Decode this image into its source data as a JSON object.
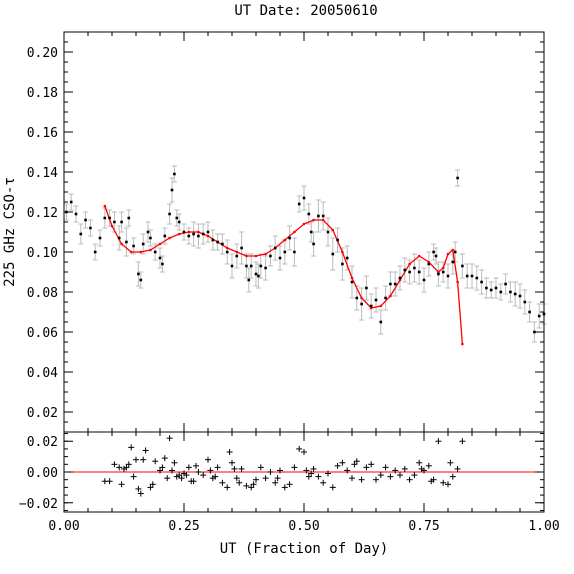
{
  "chart_data": {
    "type": "scatter",
    "title": "UT Date: 20050610",
    "xlabel": "UT (Fraction of Day)",
    "ylabel": "225 GHz CSO-τ",
    "xlim": [
      0.0,
      1.0
    ],
    "xticks": [
      0.0,
      0.25,
      0.5,
      0.75,
      1.0
    ],
    "xtick_labels": [
      "0.00",
      "0.25",
      "0.50",
      "0.75",
      "1.00"
    ],
    "top_panel": {
      "ylim": [
        0.01,
        0.21
      ],
      "yticks": [
        0.02,
        0.04,
        0.06,
        0.08,
        0.1,
        0.12,
        0.14,
        0.16,
        0.18,
        0.2
      ],
      "ytick_labels": [
        "0.02",
        "0.04",
        "0.06",
        "0.08",
        "0.10",
        "0.12",
        "0.14",
        "0.16",
        "0.18",
        "0.20"
      ],
      "series": [
        {
          "kind": "points_with_errorbars",
          "color": "#000000",
          "errorbar_color": "#bbbbbb",
          "x": [
            0.005,
            0.015,
            0.025,
            0.035,
            0.045,
            0.055,
            0.065,
            0.075,
            0.085,
            0.095,
            0.105,
            0.115,
            0.12,
            0.13,
            0.135,
            0.145,
            0.155,
            0.16,
            0.165,
            0.175,
            0.18,
            0.19,
            0.2,
            0.205,
            0.21,
            0.22,
            0.225,
            0.23,
            0.235,
            0.24,
            0.25,
            0.26,
            0.27,
            0.28,
            0.29,
            0.3,
            0.31,
            0.32,
            0.33,
            0.34,
            0.35,
            0.36,
            0.37,
            0.38,
            0.385,
            0.39,
            0.4,
            0.405,
            0.41,
            0.42,
            0.43,
            0.44,
            0.45,
            0.46,
            0.47,
            0.48,
            0.49,
            0.5,
            0.51,
            0.515,
            0.52,
            0.53,
            0.54,
            0.55,
            0.56,
            0.57,
            0.58,
            0.59,
            0.6,
            0.61,
            0.62,
            0.63,
            0.64,
            0.65,
            0.66,
            0.67,
            0.68,
            0.69,
            0.7,
            0.71,
            0.72,
            0.73,
            0.74,
            0.75,
            0.76,
            0.77,
            0.775,
            0.78,
            0.79,
            0.8,
            0.81,
            0.815,
            0.82,
            0.83,
            0.84,
            0.85,
            0.86,
            0.87,
            0.88,
            0.89,
            0.9,
            0.91,
            0.92,
            0.93,
            0.94,
            0.95,
            0.96,
            0.97,
            0.98,
            0.99,
            1.0
          ],
          "y": [
            0.12,
            0.125,
            0.119,
            0.109,
            0.116,
            0.112,
            0.1,
            0.107,
            0.117,
            0.117,
            0.115,
            0.107,
            0.115,
            0.105,
            0.117,
            0.103,
            0.089,
            0.086,
            0.104,
            0.11,
            0.107,
            0.1,
            0.097,
            0.094,
            0.108,
            0.119,
            0.131,
            0.139,
            0.117,
            0.115,
            0.11,
            0.108,
            0.109,
            0.108,
            0.109,
            0.11,
            0.106,
            0.105,
            0.104,
            0.1,
            0.093,
            0.098,
            0.102,
            0.093,
            0.086,
            0.093,
            0.089,
            0.088,
            0.093,
            0.092,
            0.098,
            0.102,
            0.097,
            0.1,
            0.107,
            0.1,
            0.124,
            0.127,
            0.119,
            0.11,
            0.104,
            0.118,
            0.118,
            0.11,
            0.099,
            0.106,
            0.094,
            0.097,
            0.085,
            0.077,
            0.074,
            0.082,
            0.073,
            0.076,
            0.065,
            0.077,
            0.084,
            0.084,
            0.087,
            0.091,
            0.09,
            0.092,
            0.09,
            0.086,
            0.094,
            0.1,
            0.098,
            0.089,
            0.09,
            0.088,
            0.095,
            0.1,
            0.137,
            0.093,
            0.088,
            0.088,
            0.087,
            0.085,
            0.082,
            0.081,
            0.082,
            0.08,
            0.084,
            0.08,
            0.079,
            0.078,
            0.075,
            0.07,
            0.06,
            0.068,
            0.069
          ],
          "err": [
            0.004,
            0.004,
            0.004,
            0.005,
            0.004,
            0.004,
            0.004,
            0.004,
            0.005,
            0.004,
            0.005,
            0.006,
            0.005,
            0.007,
            0.004,
            0.004,
            0.006,
            0.004,
            0.005,
            0.005,
            0.004,
            0.004,
            0.005,
            0.004,
            0.004,
            0.005,
            0.006,
            0.004,
            0.004,
            0.004,
            0.004,
            0.004,
            0.006,
            0.006,
            0.005,
            0.005,
            0.005,
            0.004,
            0.005,
            0.006,
            0.006,
            0.006,
            0.008,
            0.006,
            0.006,
            0.006,
            0.006,
            0.006,
            0.006,
            0.006,
            0.005,
            0.006,
            0.006,
            0.006,
            0.006,
            0.007,
            0.004,
            0.006,
            0.005,
            0.005,
            0.006,
            0.008,
            0.007,
            0.007,
            0.008,
            0.006,
            0.008,
            0.006,
            0.008,
            0.006,
            0.008,
            0.006,
            0.006,
            0.006,
            0.006,
            0.006,
            0.006,
            0.006,
            0.006,
            0.006,
            0.006,
            0.007,
            0.006,
            0.006,
            0.006,
            0.004,
            0.004,
            0.006,
            0.005,
            0.006,
            0.006,
            0.005,
            0.004,
            0.006,
            0.006,
            0.006,
            0.006,
            0.006,
            0.005,
            0.004,
            0.005,
            0.004,
            0.005,
            0.005,
            0.006,
            0.006,
            0.006,
            0.005,
            0.005,
            0.006,
            0.005
          ]
        },
        {
          "kind": "fit_line",
          "color": "#ff0000",
          "x": [
            0.085,
            0.1,
            0.12,
            0.14,
            0.16,
            0.18,
            0.2,
            0.22,
            0.24,
            0.26,
            0.28,
            0.3,
            0.32,
            0.34,
            0.36,
            0.38,
            0.4,
            0.42,
            0.44,
            0.46,
            0.48,
            0.5,
            0.52,
            0.54,
            0.56,
            0.58,
            0.6,
            0.62,
            0.64,
            0.66,
            0.68,
            0.7,
            0.72,
            0.74,
            0.76,
            0.78,
            0.79,
            0.8,
            0.81,
            0.82,
            0.83
          ],
          "y": [
            0.123,
            0.113,
            0.104,
            0.1,
            0.1,
            0.101,
            0.104,
            0.107,
            0.109,
            0.11,
            0.11,
            0.108,
            0.105,
            0.102,
            0.1,
            0.098,
            0.098,
            0.099,
            0.102,
            0.106,
            0.11,
            0.114,
            0.116,
            0.116,
            0.111,
            0.1,
            0.087,
            0.077,
            0.072,
            0.073,
            0.078,
            0.086,
            0.094,
            0.098,
            0.095,
            0.09,
            0.092,
            0.099,
            0.101,
            0.085,
            0.054
          ]
        }
      ]
    },
    "bottom_panel": {
      "ylim": [
        -0.026,
        0.026
      ],
      "yticks": [
        -0.02,
        0.0,
        0.02
      ],
      "ytick_labels": [
        "−0.02",
        "0.00",
        "0.02"
      ],
      "reference_line": {
        "y": 0.0,
        "color": "#ff0000"
      },
      "series": [
        {
          "kind": "residual_markers",
          "marker": "+",
          "color": "#000000",
          "x": [
            0.085,
            0.095,
            0.105,
            0.115,
            0.12,
            0.125,
            0.13,
            0.135,
            0.14,
            0.145,
            0.15,
            0.155,
            0.16,
            0.165,
            0.17,
            0.18,
            0.185,
            0.19,
            0.2,
            0.205,
            0.21,
            0.215,
            0.22,
            0.225,
            0.23,
            0.235,
            0.24,
            0.245,
            0.25,
            0.255,
            0.26,
            0.265,
            0.27,
            0.275,
            0.28,
            0.29,
            0.3,
            0.305,
            0.31,
            0.315,
            0.32,
            0.33,
            0.34,
            0.345,
            0.35,
            0.355,
            0.36,
            0.365,
            0.37,
            0.38,
            0.39,
            0.395,
            0.4,
            0.41,
            0.42,
            0.43,
            0.44,
            0.445,
            0.45,
            0.46,
            0.47,
            0.48,
            0.49,
            0.5,
            0.505,
            0.51,
            0.515,
            0.52,
            0.53,
            0.54,
            0.55,
            0.56,
            0.57,
            0.58,
            0.59,
            0.6,
            0.605,
            0.61,
            0.62,
            0.63,
            0.64,
            0.65,
            0.66,
            0.67,
            0.68,
            0.69,
            0.7,
            0.71,
            0.72,
            0.73,
            0.74,
            0.745,
            0.75,
            0.76,
            0.765,
            0.77,
            0.78,
            0.79,
            0.8,
            0.805,
            0.81,
            0.82,
            0.83
          ],
          "y": [
            -0.006,
            -0.006,
            0.005,
            0.003,
            -0.008,
            0.002,
            0.003,
            0.005,
            0.016,
            -0.003,
            0.008,
            -0.011,
            -0.014,
            0.008,
            0.014,
            -0.01,
            -0.008,
            0.007,
            0.001,
            0.003,
            0.009,
            -0.004,
            0.022,
            0.001,
            0.006,
            -0.003,
            -0.002,
            -0.004,
            -0.001,
            -0.002,
            0.003,
            -0.006,
            -0.006,
            0.004,
            0.0,
            -0.002,
            0.008,
            0.001,
            -0.004,
            -0.003,
            0.003,
            -0.007,
            -0.01,
            0.013,
            0.006,
            0.002,
            -0.004,
            -0.007,
            0.002,
            -0.009,
            -0.01,
            -0.008,
            -0.005,
            0.003,
            -0.004,
            0.0,
            -0.007,
            -0.004,
            0.001,
            -0.01,
            -0.008,
            0.003,
            0.015,
            0.013,
            0.001,
            -0.003,
            -0.001,
            0.002,
            -0.003,
            -0.007,
            -0.001,
            -0.01,
            0.004,
            0.006,
            0.001,
            -0.004,
            0.005,
            0.007,
            -0.005,
            0.003,
            0.005,
            -0.005,
            -0.002,
            0.003,
            -0.003,
            0.001,
            -0.002,
            0.002,
            -0.005,
            -0.002,
            0.006,
            0.002,
            0.001,
            0.004,
            -0.006,
            -0.005,
            0.02,
            -0.007,
            -0.008,
            0.006,
            -0.003,
            0.002,
            0.02
          ]
        }
      ]
    }
  }
}
